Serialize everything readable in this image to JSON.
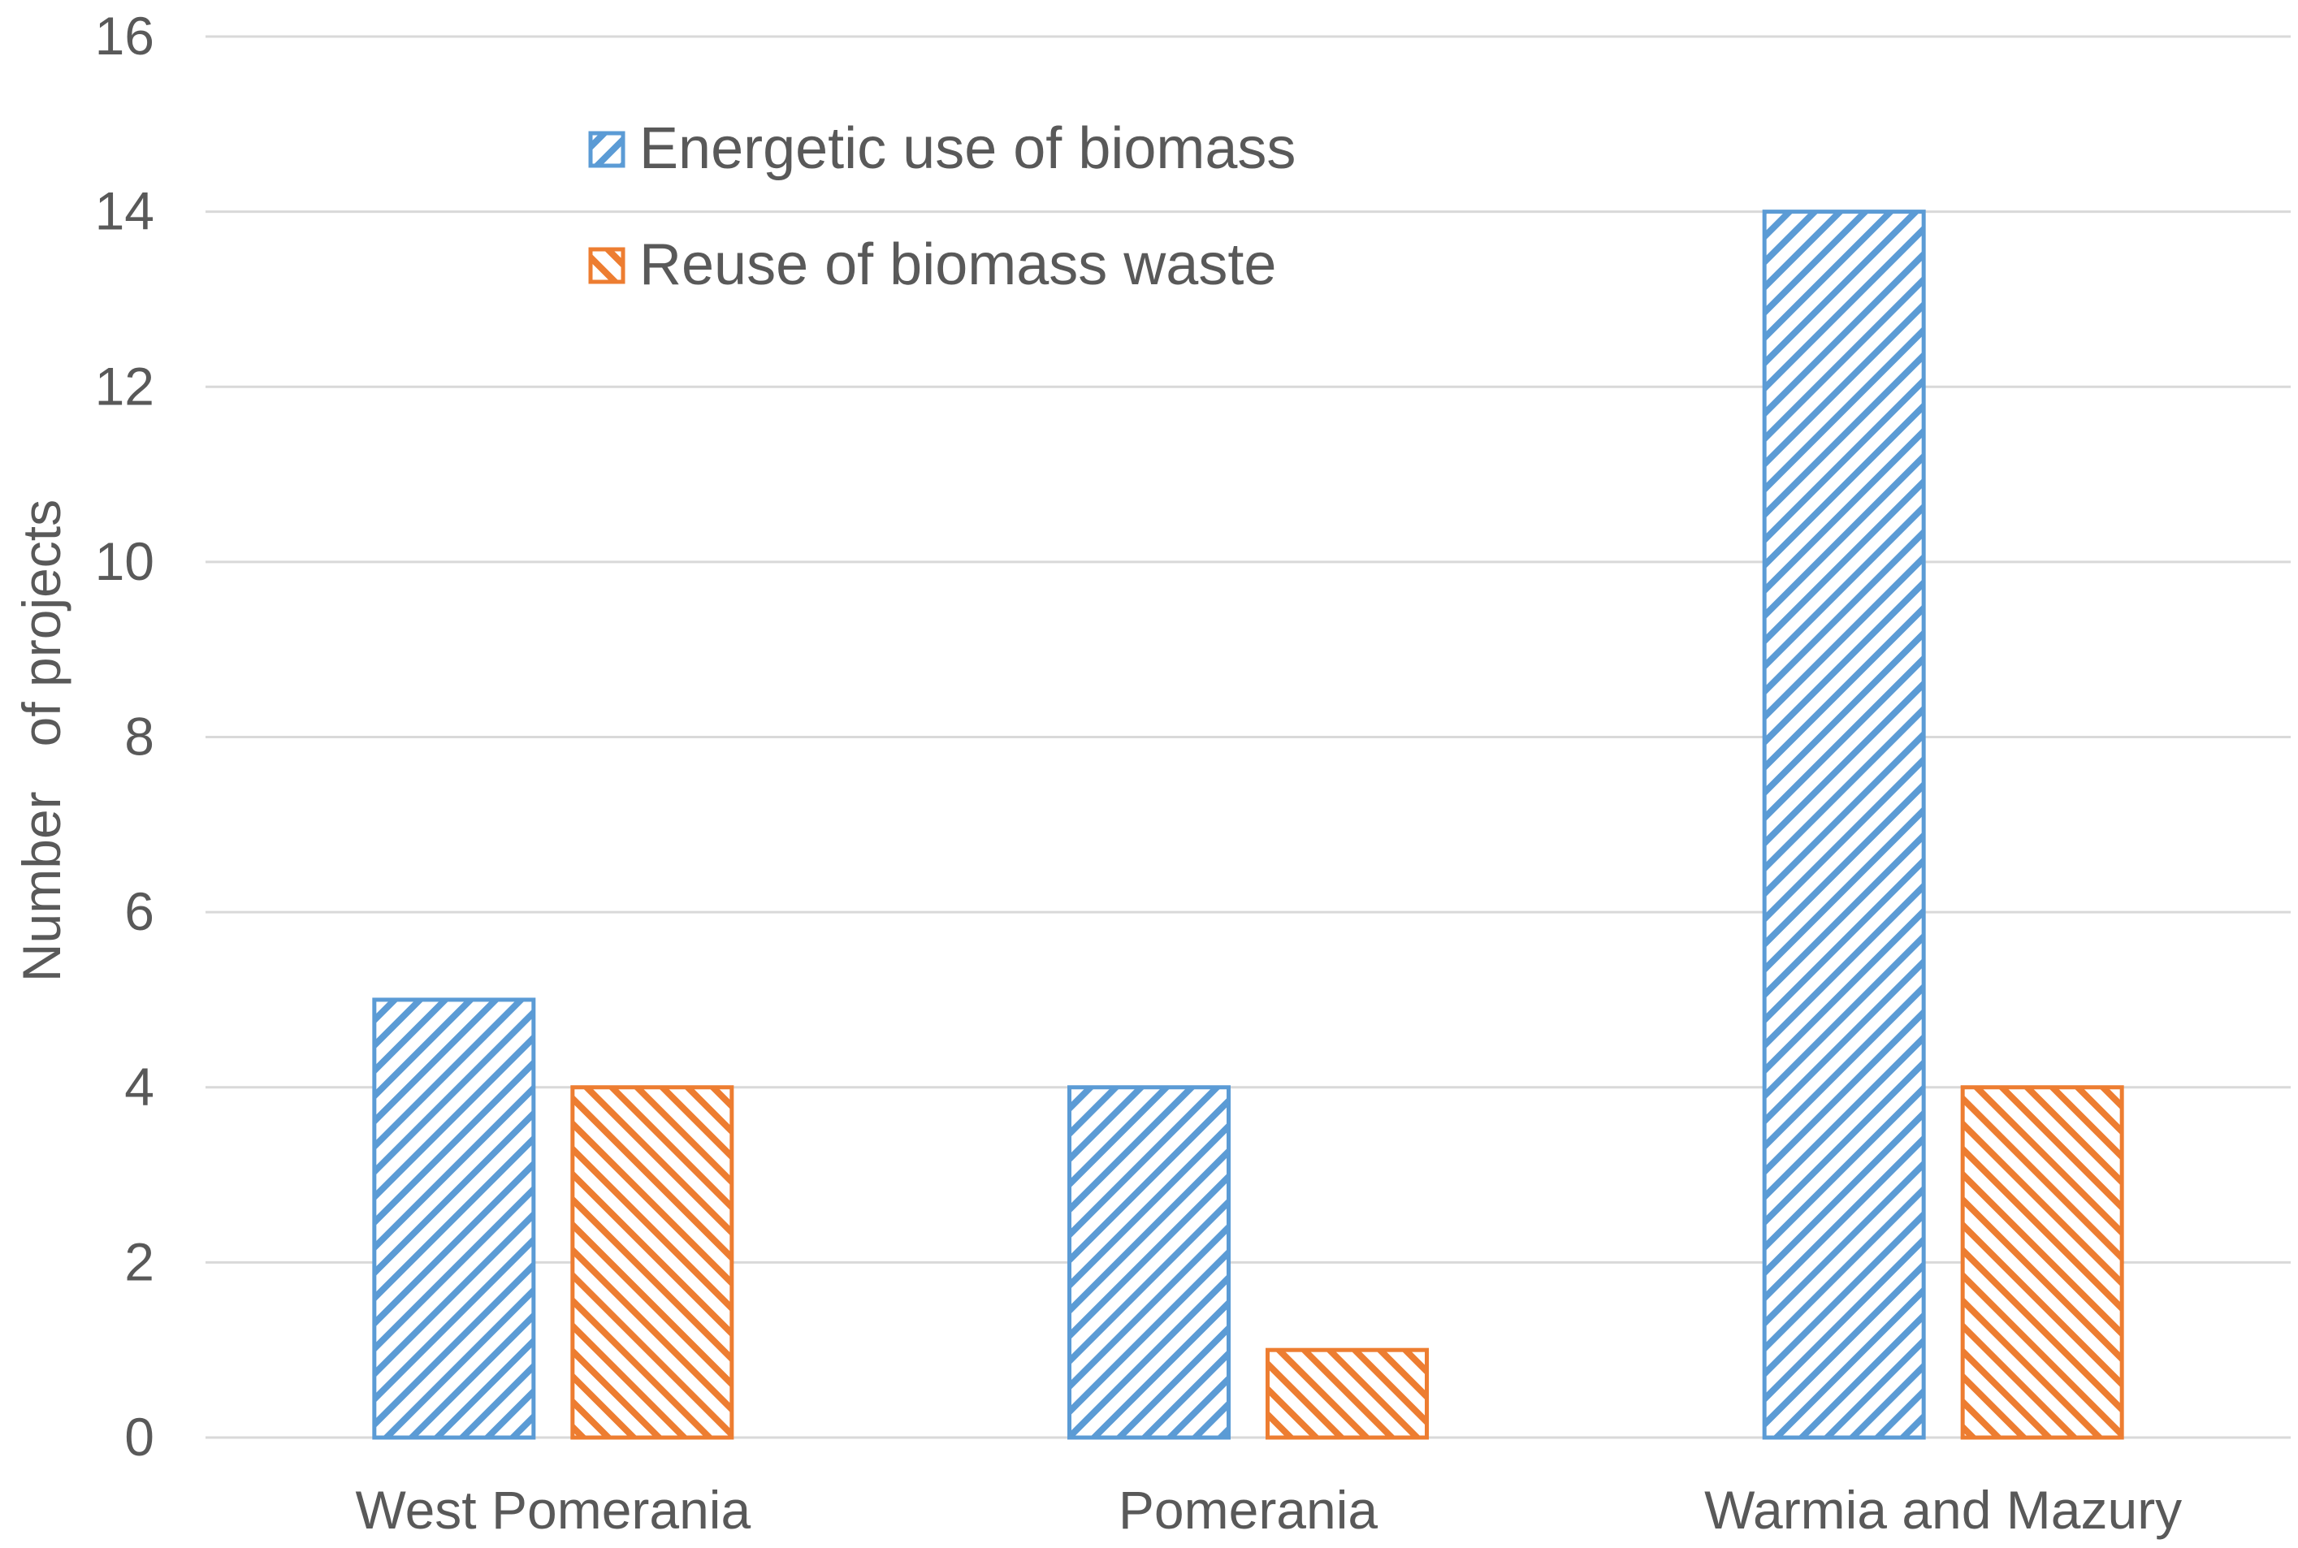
{
  "chart_data": {
    "type": "bar",
    "title": "",
    "xlabel": "",
    "ylabel": "Number   of projects",
    "ylim": [
      0,
      16
    ],
    "yticks": [
      0,
      2,
      4,
      6,
      8,
      10,
      12,
      14,
      16
    ],
    "grid": true,
    "legend_position": "top-left",
    "categories": [
      "West Pomerania",
      "Pomerania",
      "Warmia and Mazury"
    ],
    "series": [
      {
        "name": "Energetic use of biomass",
        "values": [
          5,
          4,
          14
        ],
        "color": "#5b9bd5",
        "hatch": "forward-diagonal"
      },
      {
        "name": "Reuse of biomass waste",
        "values": [
          4,
          1,
          4
        ],
        "color": "#ed7d31",
        "hatch": "backward-diagonal"
      }
    ],
    "colors": {
      "grid": "#d9d9d9",
      "text": "#595959"
    }
  }
}
